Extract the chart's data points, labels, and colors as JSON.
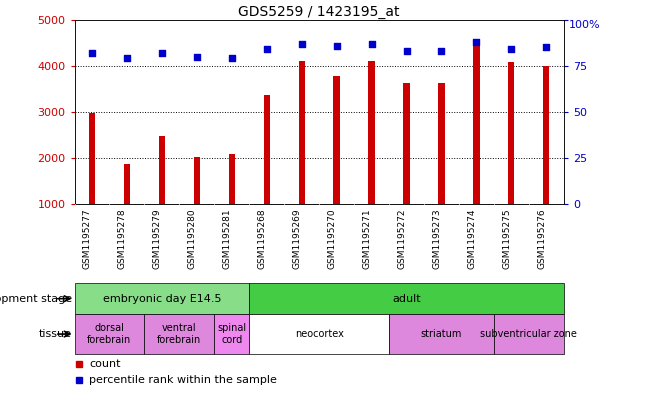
{
  "title": "GDS5259 / 1423195_at",
  "samples": [
    "GSM1195277",
    "GSM1195278",
    "GSM1195279",
    "GSM1195280",
    "GSM1195281",
    "GSM1195268",
    "GSM1195269",
    "GSM1195270",
    "GSM1195271",
    "GSM1195272",
    "GSM1195273",
    "GSM1195274",
    "GSM1195275",
    "GSM1195276"
  ],
  "counts": [
    2970,
    1870,
    2480,
    2030,
    2080,
    3360,
    4100,
    3790,
    4100,
    3620,
    3630,
    4570,
    4090,
    3990
  ],
  "percentiles": [
    82,
    79,
    82,
    80,
    79,
    84,
    87,
    86,
    87,
    83,
    83,
    88,
    84,
    85
  ],
  "bar_color": "#cc0000",
  "dot_color": "#0000cc",
  "ylim_left": [
    1000,
    5000
  ],
  "ylim_right": [
    0,
    100
  ],
  "yticks_left": [
    1000,
    2000,
    3000,
    4000,
    5000
  ],
  "yticks_right": [
    0,
    25,
    50,
    75,
    100
  ],
  "grid_values": [
    2000,
    3000,
    4000
  ],
  "dev_stage_groups": [
    {
      "label": "embryonic day E14.5",
      "start": 0,
      "end": 5,
      "color": "#88dd88"
    },
    {
      "label": "adult",
      "start": 5,
      "end": 14,
      "color": "#44cc44"
    }
  ],
  "tissue_groups": [
    {
      "label": "dorsal\nforebrain",
      "start": 0,
      "end": 2,
      "color": "#dd88dd"
    },
    {
      "label": "ventral\nforebrain",
      "start": 2,
      "end": 4,
      "color": "#dd88dd"
    },
    {
      "label": "spinal\ncord",
      "start": 4,
      "end": 5,
      "color": "#ee88ee"
    },
    {
      "label": "neocortex",
      "start": 5,
      "end": 9,
      "color": "#ffffff"
    },
    {
      "label": "striatum",
      "start": 9,
      "end": 12,
      "color": "#dd88dd"
    },
    {
      "label": "subventricular zone",
      "start": 12,
      "end": 14,
      "color": "#dd88dd"
    }
  ],
  "legend_count_label": "count",
  "legend_pct_label": "percentile rank within the sample",
  "dev_stage_label": "development stage",
  "tissue_label": "tissue",
  "plot_bg": "#ffffff",
  "label_area_bg": "#cccccc",
  "fig_bg": "#ffffff"
}
